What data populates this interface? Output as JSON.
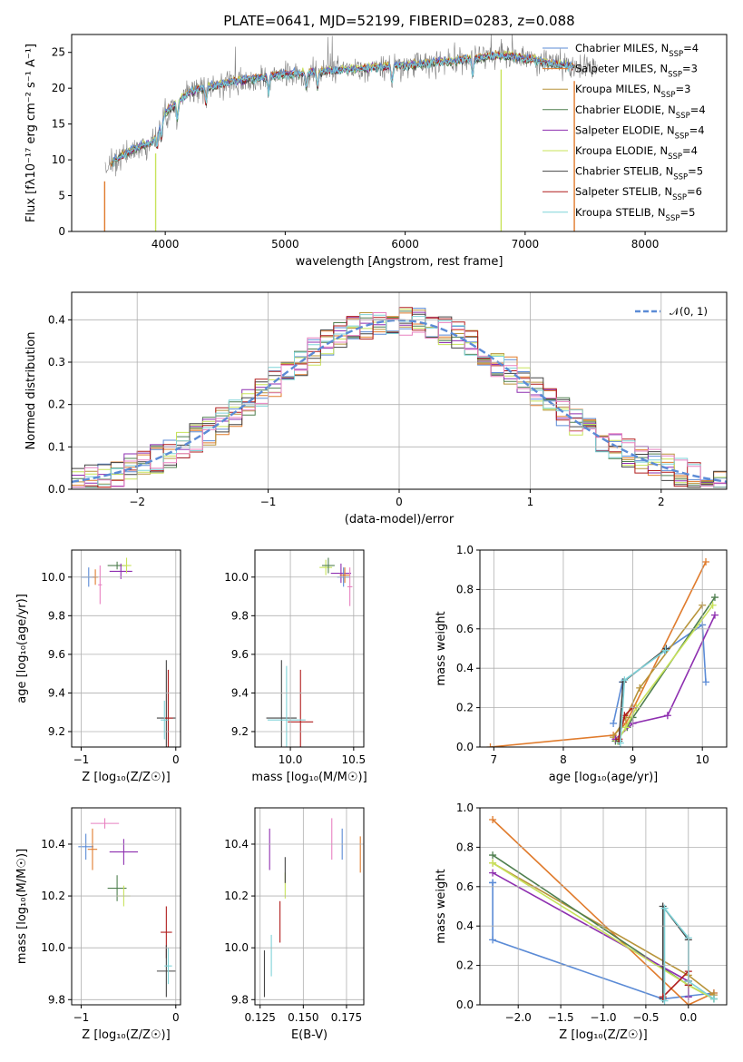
{
  "colors": {
    "chabrier_miles": "#5b8bd6",
    "salpeter_miles": "#e07b2c",
    "kroupa_miles": "#b8943a",
    "chabrier_elodie": "#4f7f4f",
    "salpeter_elodie": "#8e2fb0",
    "kroupa_elodie": "#c8e35a",
    "chabrier_stelib": "#444444",
    "salpeter_stelib": "#b01c1c",
    "kroupa_stelib": "#7fd3d8",
    "pink": "#e880c0",
    "gray_spectrum": "#808080",
    "normal_curve": "#5b8bd6"
  },
  "chart_data": [
    {
      "id": "spectrum",
      "type": "line",
      "title": "PLATE=0641, MJD=52199, FIBERID=0283, z=0.088",
      "xlabel": "wavelength [Angstrom, rest frame]",
      "ylabel": "Flux [fλ10⁻¹⁷ erg cm⁻² s⁻¹ A⁻¹]",
      "xlim": [
        3220,
        8680
      ],
      "ylim": [
        0,
        27.5
      ],
      "xticks": [
        "4000",
        "5000",
        "6000",
        "7000",
        "8000"
      ],
      "yticks": [
        "0",
        "5",
        "10",
        "15",
        "20",
        "25"
      ],
      "grid": false,
      "legend_placement": "top-right",
      "legend": [
        {
          "label": "Chabrier MILES, N",
          "sub": "SSP",
          "suffix": "=4",
          "color_key": "chabrier_miles"
        },
        {
          "label": "Salpeter MILES, N",
          "sub": "SSP",
          "suffix": "=3",
          "color_key": "salpeter_miles"
        },
        {
          "label": "Kroupa MILES, N",
          "sub": "SSP",
          "suffix": "=3",
          "color_key": "kroupa_miles"
        },
        {
          "label": "Chabrier ELODIE, N",
          "sub": "SSP",
          "suffix": "=4",
          "color_key": "chabrier_elodie"
        },
        {
          "label": "Salpeter ELODIE, N",
          "sub": "SSP",
          "suffix": "=4",
          "color_key": "salpeter_elodie"
        },
        {
          "label": "Kroupa ELODIE, N",
          "sub": "SSP",
          "suffix": "=4",
          "color_key": "kroupa_elodie"
        },
        {
          "label": "Chabrier STELIB, N",
          "sub": "SSP",
          "suffix": "=5",
          "color_key": "chabrier_stelib"
        },
        {
          "label": "Salpeter STELIB, N",
          "sub": "SSP",
          "suffix": "=6",
          "color_key": "salpeter_stelib"
        },
        {
          "label": "Kroupa STELIB, N",
          "sub": "SSP",
          "suffix": "=5",
          "color_key": "kroupa_stelib"
        }
      ],
      "continuum": {
        "x": [
          3500,
          3600,
          3700,
          3800,
          3900,
          4000,
          4100,
          4200,
          4400,
          4600,
          4800,
          5000,
          5200,
          5400,
          5600,
          5800,
          6000,
          6200,
          6400,
          6600,
          6800,
          7000,
          7200,
          7400,
          7600
        ],
        "y": [
          9,
          10.2,
          11.2,
          12,
          12.5,
          16.5,
          18,
          19.5,
          20.3,
          21,
          21.5,
          22,
          22.2,
          22.5,
          22.7,
          23,
          23.2,
          23.5,
          23.8,
          24.2,
          24.6,
          24.2,
          23.5,
          23,
          23
        ]
      }
    },
    {
      "id": "residuals",
      "type": "line",
      "xlabel": "(data-model)/error",
      "ylabel": "Normed distribution",
      "xlim": [
        -2.5,
        2.5
      ],
      "ylim": [
        0,
        0.465
      ],
      "xticks": [
        -2,
        -1,
        0,
        1,
        2
      ],
      "yticks": [
        0.0,
        0.1,
        0.2,
        0.3,
        0.4
      ],
      "xtick_labels": [
        "−2",
        "−1",
        "0",
        "1",
        "2"
      ],
      "ytick_labels": [
        "0.0",
        "0.1",
        "0.2",
        "0.3",
        "0.4"
      ],
      "grid": true,
      "legend_placement": "top-right",
      "legend": [
        {
          "label": "𝒩(0, 1)",
          "color_key": "normal_curve"
        }
      ],
      "bin_width": 0.1,
      "hist_color_keys": [
        "chabrier_miles",
        "salpeter_miles",
        "kroupa_miles",
        "chabrier_elodie",
        "salpeter_elodie",
        "kroupa_elodie",
        "chabrier_stelib",
        "salpeter_stelib",
        "kroupa_stelib",
        "pink"
      ]
    },
    {
      "id": "age_vs_Z",
      "type": "scatter",
      "xlabel": "Z [log₁₀(Z/Z☉)]",
      "ylabel": "age  [log₁₀(age/yr)]",
      "xlim": [
        -1.1,
        0.05
      ],
      "ylim": [
        9.12,
        10.14
      ],
      "xticks": [
        -1,
        0
      ],
      "yticks": [
        9.2,
        9.4,
        9.6,
        9.8,
        10.0
      ],
      "xtick_labels": [
        "−1",
        "0"
      ],
      "ytick_labels": [
        "9.2",
        "9.4",
        "9.6",
        "9.8",
        "10.0"
      ],
      "grid": true,
      "points": [
        {
          "x": -0.92,
          "y": 10.0,
          "xerr": 0.08,
          "yerr": 0.05,
          "color_key": "chabrier_miles"
        },
        {
          "x": -0.85,
          "y": 10.0,
          "xerr": 0.03,
          "yerr": 0.04,
          "color_key": "salpeter_miles"
        },
        {
          "x": -0.8,
          "y": 9.96,
          "xerr": 0.02,
          "yerr": 0.1,
          "color_key": "pink"
        },
        {
          "x": -0.62,
          "y": 10.06,
          "xerr": 0.1,
          "yerr": 0.02,
          "color_key": "chabrier_elodie"
        },
        {
          "x": -0.58,
          "y": 10.03,
          "xerr": 0.12,
          "yerr": 0.04,
          "color_key": "salpeter_elodie"
        },
        {
          "x": -0.52,
          "y": 10.06,
          "xerr": 0.05,
          "yerr": 0.04,
          "color_key": "kroupa_elodie"
        },
        {
          "x": -0.1,
          "y": 9.27,
          "xerr": 0.1,
          "yerr": 0.3,
          "color_key": "chabrier_stelib"
        },
        {
          "x": -0.08,
          "y": 9.27,
          "xerr": 0.05,
          "yerr": 0.25,
          "color_key": "salpeter_stelib"
        },
        {
          "x": -0.12,
          "y": 9.26,
          "xerr": 0.04,
          "yerr": 0.1,
          "color_key": "kroupa_stelib"
        }
      ]
    },
    {
      "id": "age_vs_mass",
      "type": "scatter",
      "xlabel": "mass [log₁₀(M/M☉)]",
      "ylabel": "",
      "xlim": [
        9.72,
        10.58
      ],
      "ylim": [
        9.12,
        10.14
      ],
      "xticks": [
        10.0,
        10.5
      ],
      "yticks": [
        9.2,
        9.4,
        9.6,
        9.8,
        10.0
      ],
      "xtick_labels": [
        "10.0",
        "10.5"
      ],
      "ytick_labels": [
        "9.2",
        "9.4",
        "9.6",
        "9.8",
        "10.0"
      ],
      "grid": true,
      "points": [
        {
          "x": 10.28,
          "y": 10.05,
          "xerr": 0.05,
          "yerr": 0.04,
          "color_key": "kroupa_elodie"
        },
        {
          "x": 10.3,
          "y": 10.06,
          "xerr": 0.05,
          "yerr": 0.04,
          "color_key": "chabrier_elodie"
        },
        {
          "x": 10.4,
          "y": 10.02,
          "xerr": 0.08,
          "yerr": 0.05,
          "color_key": "salpeter_elodie"
        },
        {
          "x": 10.42,
          "y": 10.0,
          "xerr": 0.05,
          "yerr": 0.05,
          "color_key": "chabrier_miles"
        },
        {
          "x": 10.43,
          "y": 10.01,
          "xerr": 0.04,
          "yerr": 0.04,
          "color_key": "salpeter_miles"
        },
        {
          "x": 10.47,
          "y": 9.95,
          "xerr": 0.02,
          "yerr": 0.1,
          "color_key": "pink"
        },
        {
          "x": 9.93,
          "y": 9.27,
          "xerr": 0.12,
          "yerr": 0.3,
          "color_key": "chabrier_stelib"
        },
        {
          "x": 10.08,
          "y": 9.25,
          "xerr": 0.1,
          "yerr": 0.27,
          "color_key": "salpeter_stelib"
        },
        {
          "x": 9.97,
          "y": 9.26,
          "xerr": 0.15,
          "yerr": 0.28,
          "color_key": "kroupa_stelib"
        }
      ]
    },
    {
      "id": "massweight_vs_age",
      "type": "line",
      "xlabel": "age  [log₁₀(age/yr)]",
      "ylabel": "mass weight",
      "xlim": [
        6.8,
        10.35
      ],
      "ylim": [
        0,
        1.0
      ],
      "xticks": [
        7,
        8,
        9,
        10
      ],
      "yticks": [
        0.0,
        0.2,
        0.4,
        0.6,
        0.8,
        1.0
      ],
      "xtick_labels": [
        "7",
        "8",
        "9",
        "10"
      ],
      "ytick_labels": [
        "0.0",
        "0.2",
        "0.4",
        "0.6",
        "0.8",
        "1.0"
      ],
      "grid": true,
      "series": [
        {
          "color_key": "chabrier_miles",
          "x": [
            8.72,
            8.85,
            9.46,
            10.0,
            10.05
          ],
          "y": [
            0.12,
            0.33,
            0.49,
            0.62,
            0.33
          ]
        },
        {
          "color_key": "salpeter_miles",
          "x": [
            6.95,
            8.72,
            8.9,
            10.05
          ],
          "y": [
            0.0,
            0.06,
            0.12,
            0.94
          ]
        },
        {
          "color_key": "kroupa_miles",
          "x": [
            8.72,
            8.9,
            9.1,
            10.0
          ],
          "y": [
            0.05,
            0.15,
            0.3,
            0.72
          ]
        },
        {
          "color_key": "chabrier_elodie",
          "x": [
            8.75,
            8.92,
            9.0,
            10.18
          ],
          "y": [
            0.03,
            0.1,
            0.15,
            0.76
          ]
        },
        {
          "color_key": "salpeter_elodie",
          "x": [
            8.75,
            9.0,
            9.5,
            10.18
          ],
          "y": [
            0.04,
            0.12,
            0.16,
            0.67
          ]
        },
        {
          "color_key": "kroupa_elodie",
          "x": [
            8.78,
            8.9,
            9.05,
            10.15
          ],
          "y": [
            0.03,
            0.1,
            0.2,
            0.72
          ]
        },
        {
          "color_key": "chabrier_stelib",
          "x": [
            8.8,
            8.86,
            9.48
          ],
          "y": [
            0.03,
            0.33,
            0.5
          ]
        },
        {
          "color_key": "salpeter_stelib",
          "x": [
            8.8,
            8.88,
            9.0
          ],
          "y": [
            0.04,
            0.16,
            0.2
          ]
        },
        {
          "color_key": "kroupa_stelib",
          "x": [
            8.82,
            8.88,
            9.47
          ],
          "y": [
            0.02,
            0.34,
            0.49
          ]
        }
      ]
    },
    {
      "id": "mass_vs_Z",
      "type": "scatter",
      "xlabel": "Z [log₁₀(Z/Z☉)]",
      "ylabel": "mass [log₁₀(M/M☉)]",
      "xlim": [
        -1.1,
        0.05
      ],
      "ylim": [
        9.78,
        10.54
      ],
      "xticks": [
        -1,
        0
      ],
      "yticks": [
        9.8,
        10.0,
        10.2,
        10.4
      ],
      "xtick_labels": [
        "−1",
        "0"
      ],
      "ytick_labels": [
        "9.8",
        "10.0",
        "10.2",
        "10.4"
      ],
      "grid": true,
      "points": [
        {
          "x": -0.95,
          "y": 10.39,
          "xerr": 0.08,
          "yerr": 0.05,
          "color_key": "chabrier_miles"
        },
        {
          "x": -0.88,
          "y": 10.38,
          "xerr": 0.05,
          "yerr": 0.08,
          "color_key": "salpeter_miles"
        },
        {
          "x": -0.75,
          "y": 10.48,
          "xerr": 0.15,
          "yerr": 0.02,
          "color_key": "pink"
        },
        {
          "x": -0.55,
          "y": 10.37,
          "xerr": 0.15,
          "yerr": 0.05,
          "color_key": "salpeter_elodie"
        },
        {
          "x": -0.62,
          "y": 10.23,
          "xerr": 0.1,
          "yerr": 0.05,
          "color_key": "chabrier_elodie"
        },
        {
          "x": -0.55,
          "y": 10.2,
          "xerr": 0.07,
          "yerr": 0.04,
          "color_key": "kroupa_elodie"
        },
        {
          "x": -0.1,
          "y": 10.06,
          "xerr": 0.06,
          "yerr": 0.1,
          "color_key": "salpeter_stelib"
        },
        {
          "x": -0.1,
          "y": 9.91,
          "xerr": 0.1,
          "yerr": 0.1,
          "color_key": "chabrier_stelib"
        },
        {
          "x": -0.08,
          "y": 9.93,
          "xerr": 0.04,
          "yerr": 0.07,
          "color_key": "kroupa_stelib"
        }
      ]
    },
    {
      "id": "mass_vs_EBV",
      "type": "scatter",
      "xlabel": "E(B-V)",
      "ylabel": "",
      "xlim": [
        0.122,
        0.185
      ],
      "ylim": [
        9.78,
        10.54
      ],
      "xticks": [
        0.125,
        0.15,
        0.175
      ],
      "yticks": [
        9.8,
        10.0,
        10.2,
        10.4
      ],
      "xtick_labels": [
        "0.125",
        "0.150",
        "0.175"
      ],
      "ytick_labels": [
        "9.8",
        "10.0",
        "10.2",
        "10.4"
      ],
      "grid": true,
      "points": [
        {
          "x": 0.1275,
          "y": 9.9,
          "yerr": 0.09,
          "color_key": "chabrier_stelib"
        },
        {
          "x": 0.1315,
          "y": 9.97,
          "yerr": 0.08,
          "color_key": "kroupa_stelib"
        },
        {
          "x": 0.1305,
          "y": 10.38,
          "yerr": 0.08,
          "color_key": "salpeter_elodie"
        },
        {
          "x": 0.1365,
          "y": 10.1,
          "yerr": 0.08,
          "color_key": "salpeter_stelib"
        },
        {
          "x": 0.1395,
          "y": 10.24,
          "yerr": 0.05,
          "color_key": "kroupa_elodie"
        },
        {
          "x": 0.1395,
          "y": 10.3,
          "yerr": 0.05,
          "color_key": "chabrier_stelib"
        },
        {
          "x": 0.1665,
          "y": 10.42,
          "yerr": 0.08,
          "color_key": "pink"
        },
        {
          "x": 0.1725,
          "y": 10.4,
          "yerr": 0.06,
          "color_key": "chabrier_miles"
        },
        {
          "x": 0.183,
          "y": 10.36,
          "yerr": 0.07,
          "color_key": "salpeter_miles"
        }
      ]
    },
    {
      "id": "massweight_vs_Z",
      "type": "line",
      "xlabel": "Z [log₁₀(Z/Z☉)]",
      "ylabel": "mass weight",
      "xlim": [
        -2.45,
        0.45
      ],
      "ylim": [
        0,
        1.0
      ],
      "xticks": [
        -2.0,
        -1.5,
        -1.0,
        -0.5,
        0.0
      ],
      "yticks": [
        0.0,
        0.2,
        0.4,
        0.6,
        0.8,
        1.0
      ],
      "xtick_labels": [
        "−2.0",
        "−1.5",
        "−1.0",
        "−0.5",
        "0.0"
      ],
      "ytick_labels": [
        "0.0",
        "0.2",
        "0.4",
        "0.6",
        "0.8",
        "1.0"
      ],
      "grid": true,
      "series": [
        {
          "color_key": "chabrier_miles",
          "x": [
            -2.3,
            -2.3,
            -2.3,
            -0.3,
            0.3,
            0.3
          ],
          "y": [
            0.62,
            0.62,
            0.33,
            0.03,
            0.06,
            0.03
          ]
        },
        {
          "color_key": "salpeter_miles",
          "x": [
            -2.3,
            0.0,
            0.3
          ],
          "y": [
            0.94,
            0.0,
            0.06
          ]
        },
        {
          "color_key": "kroupa_miles",
          "x": [
            -2.3,
            0.0,
            0.3
          ],
          "y": [
            0.72,
            0.15,
            0.05
          ]
        },
        {
          "color_key": "chabrier_elodie",
          "x": [
            -2.3,
            0.0,
            0.3
          ],
          "y": [
            0.76,
            0.1,
            0.03
          ]
        },
        {
          "color_key": "salpeter_elodie",
          "x": [
            -2.3,
            0.0,
            0.0
          ],
          "y": [
            0.67,
            0.12,
            0.04
          ]
        },
        {
          "color_key": "kroupa_elodie",
          "x": [
            -2.3,
            0.0,
            0.3
          ],
          "y": [
            0.72,
            0.1,
            0.03
          ]
        },
        {
          "color_key": "chabrier_stelib",
          "x": [
            -0.3,
            -0.3,
            0.0,
            0.0
          ],
          "y": [
            0.03,
            0.5,
            0.33,
            0.12
          ]
        },
        {
          "color_key": "salpeter_stelib",
          "x": [
            -0.3,
            0.0,
            0.0
          ],
          "y": [
            0.04,
            0.17,
            0.1
          ]
        },
        {
          "color_key": "kroupa_stelib",
          "x": [
            -0.28,
            -0.28,
            0.0,
            0.0,
            0.3
          ],
          "y": [
            0.02,
            0.49,
            0.34,
            0.12,
            0.03
          ]
        }
      ]
    }
  ]
}
